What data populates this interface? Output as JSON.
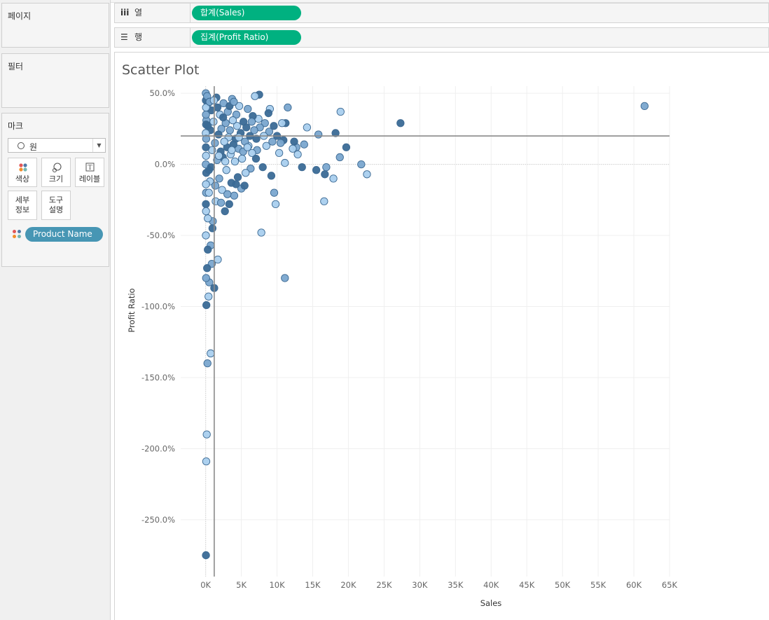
{
  "panels": {
    "pages": "페이지",
    "filters": "필터",
    "marks": "마크"
  },
  "marks": {
    "mark_type": "원",
    "buttons": {
      "color": "색상",
      "size": "크기",
      "label": "레이블",
      "detail": "세부\n정보",
      "tooltip": "도구\n설명"
    },
    "detail_pill": "Product Name",
    "dot_colors": [
      "#e15759",
      "#4e79a7",
      "#f28e2b",
      "#76b7b2"
    ]
  },
  "shelves": {
    "columns": {
      "label": "열",
      "pill": "합계(Sales)"
    },
    "rows": {
      "label": "행",
      "pill": "집계(Profit Ratio)"
    }
  },
  "colors": {
    "pill_green": "#00b180",
    "pill_blue": "#4796b4",
    "point_fill": "#7aa6cf",
    "point_dark": "#3a6a96",
    "point_light": "#a9cfee"
  },
  "sheet_title": "Scatter Plot",
  "chart_data": {
    "type": "scatter",
    "title": "Scatter Plot",
    "xlabel": "Sales",
    "ylabel": "Profit Ratio",
    "xlim": [
      -3500,
      65000
    ],
    "ylim": [
      -290,
      55
    ],
    "x_ticks": [
      0,
      5000,
      10000,
      15000,
      20000,
      25000,
      30000,
      35000,
      40000,
      45000,
      50000,
      55000,
      60000,
      65000
    ],
    "x_tick_labels": [
      "0K",
      "5K",
      "10K",
      "15K",
      "20K",
      "25K",
      "30K",
      "35K",
      "40K",
      "45K",
      "50K",
      "55K",
      "60K",
      "65K"
    ],
    "y_ticks": [
      50,
      0,
      -50,
      -100,
      -150,
      -200,
      -250
    ],
    "y_tick_labels": [
      "50.0%",
      "0.0%",
      "-50.0%",
      "-100.0%",
      "-150.0%",
      "-200.0%",
      "-250.0%"
    ],
    "reference_lines": {
      "x": 1200,
      "y": 20
    },
    "grid": true,
    "points": [
      {
        "x": 61500,
        "y": 41
      },
      {
        "x": 27300,
        "y": 29
      },
      {
        "x": 22600,
        "y": -7
      },
      {
        "x": 21800,
        "y": 0
      },
      {
        "x": 19700,
        "y": 12
      },
      {
        "x": 18900,
        "y": 37
      },
      {
        "x": 18800,
        "y": 5
      },
      {
        "x": 18200,
        "y": 22
      },
      {
        "x": 17900,
        "y": -10
      },
      {
        "x": 16900,
        "y": -2
      },
      {
        "x": 16700,
        "y": -7
      },
      {
        "x": 16600,
        "y": -26
      },
      {
        "x": 15800,
        "y": 21
      },
      {
        "x": 15500,
        "y": -4
      },
      {
        "x": 14200,
        "y": 26
      },
      {
        "x": 13800,
        "y": 14
      },
      {
        "x": 13500,
        "y": -2
      },
      {
        "x": 12900,
        "y": 7
      },
      {
        "x": 12700,
        "y": 12
      },
      {
        "x": 12400,
        "y": 16
      },
      {
        "x": 12200,
        "y": 11
      },
      {
        "x": 11500,
        "y": 40
      },
      {
        "x": 11200,
        "y": 29
      },
      {
        "x": 11100,
        "y": 1
      },
      {
        "x": 11100,
        "y": -80
      },
      {
        "x": 10900,
        "y": 17
      },
      {
        "x": 10700,
        "y": 29
      },
      {
        "x": 10500,
        "y": 15
      },
      {
        "x": 10000,
        "y": 20
      },
      {
        "x": 9800,
        "y": -28
      },
      {
        "x": 9600,
        "y": -20
      },
      {
        "x": 9200,
        "y": -8
      },
      {
        "x": 9000,
        "y": 39
      },
      {
        "x": 8900,
        "y": 23
      },
      {
        "x": 8800,
        "y": 36
      },
      {
        "x": 8500,
        "y": 13
      },
      {
        "x": 8300,
        "y": 29
      },
      {
        "x": 8000,
        "y": -2
      },
      {
        "x": 7800,
        "y": -48
      },
      {
        "x": 7600,
        "y": 26
      },
      {
        "x": 7500,
        "y": 49
      },
      {
        "x": 7400,
        "y": 32
      },
      {
        "x": 7200,
        "y": 10
      },
      {
        "x": 7100,
        "y": 18
      },
      {
        "x": 6900,
        "y": 48
      },
      {
        "x": 6800,
        "y": 24
      },
      {
        "x": 6600,
        "y": 34
      },
      {
        "x": 6500,
        "y": 8
      },
      {
        "x": 6300,
        "y": -3
      },
      {
        "x": 6200,
        "y": 20
      },
      {
        "x": 6000,
        "y": 13
      },
      {
        "x": 5900,
        "y": 39
      },
      {
        "x": 5700,
        "y": 26
      },
      {
        "x": 5600,
        "y": -6
      },
      {
        "x": 5500,
        "y": 16
      },
      {
        "x": 5300,
        "y": 30
      },
      {
        "x": 5100,
        "y": 4
      },
      {
        "x": 5000,
        "y": -17
      },
      {
        "x": 4900,
        "y": 22
      },
      {
        "x": 4700,
        "y": 41
      },
      {
        "x": 4600,
        "y": 11
      },
      {
        "x": 4500,
        "y": -9
      },
      {
        "x": 4400,
        "y": 27
      },
      {
        "x": 4300,
        "y": 35
      },
      {
        "x": 4200,
        "y": 18
      },
      {
        "x": 4100,
        "y": 2
      },
      {
        "x": 4000,
        "y": -22
      },
      {
        "x": 3900,
        "y": 14
      },
      {
        "x": 3800,
        "y": 31
      },
      {
        "x": 3700,
        "y": 46
      },
      {
        "x": 3600,
        "y": -13
      },
      {
        "x": 3500,
        "y": 7
      },
      {
        "x": 3400,
        "y": 24
      },
      {
        "x": 3300,
        "y": -28
      },
      {
        "x": 3200,
        "y": 19
      },
      {
        "x": 3100,
        "y": 37
      },
      {
        "x": 3000,
        "y": 12
      },
      {
        "x": 2900,
        "y": -4
      },
      {
        "x": 2800,
        "y": 29
      },
      {
        "x": 2700,
        "y": -33
      },
      {
        "x": 2600,
        "y": 16
      },
      {
        "x": 2500,
        "y": 43
      },
      {
        "x": 2400,
        "y": 5
      },
      {
        "x": 2300,
        "y": -18
      },
      {
        "x": 2200,
        "y": 25
      },
      {
        "x": 2100,
        "y": 9
      },
      {
        "x": 2000,
        "y": 35
      },
      {
        "x": 1900,
        "y": -10
      },
      {
        "x": 1800,
        "y": 21
      },
      {
        "x": 1700,
        "y": -67
      },
      {
        "x": 1600,
        "y": 3
      },
      {
        "x": 1500,
        "y": 47
      },
      {
        "x": 1400,
        "y": -26
      },
      {
        "x": 1300,
        "y": 15
      },
      {
        "x": 1200,
        "y": -87
      },
      {
        "x": 1100,
        "y": 30
      },
      {
        "x": 1000,
        "y": -40
      },
      {
        "x": 950,
        "y": -45
      },
      {
        "x": 900,
        "y": 10
      },
      {
        "x": 850,
        "y": -70
      },
      {
        "x": 800,
        "y": 38
      },
      {
        "x": 700,
        "y": -133
      },
      {
        "x": 700,
        "y": -57
      },
      {
        "x": 650,
        "y": 24
      },
      {
        "x": 600,
        "y": -12
      },
      {
        "x": 500,
        "y": -83
      },
      {
        "x": 450,
        "y": -4
      },
      {
        "x": 400,
        "y": -93
      },
      {
        "x": 350,
        "y": 43
      },
      {
        "x": 300,
        "y": -60
      },
      {
        "x": 300,
        "y": -38
      },
      {
        "x": 250,
        "y": -140
      },
      {
        "x": 200,
        "y": -73
      },
      {
        "x": 150,
        "y": -190
      },
      {
        "x": 100,
        "y": 31
      },
      {
        "x": 100,
        "y": -99
      },
      {
        "x": 80,
        "y": -209
      },
      {
        "x": 60,
        "y": -80
      },
      {
        "x": 40,
        "y": -275
      },
      {
        "x": 30,
        "y": -50
      },
      {
        "x": 20,
        "y": 50
      },
      {
        "x": 30,
        "y": 45
      },
      {
        "x": 50,
        "y": 40
      },
      {
        "x": 40,
        "y": 35
      },
      {
        "x": 60,
        "y": 28
      },
      {
        "x": 20,
        "y": 22
      },
      {
        "x": 70,
        "y": 18
      },
      {
        "x": 30,
        "y": 12
      },
      {
        "x": 50,
        "y": 6
      },
      {
        "x": 20,
        "y": 0
      },
      {
        "x": 80,
        "y": -6
      },
      {
        "x": 40,
        "y": -14
      },
      {
        "x": 60,
        "y": -20
      },
      {
        "x": 30,
        "y": -28
      },
      {
        "x": 50,
        "y": -33
      },
      {
        "x": 200,
        "y": 48
      },
      {
        "x": 300,
        "y": 27
      },
      {
        "x": 450,
        "y": -20
      },
      {
        "x": 550,
        "y": 44
      },
      {
        "x": 750,
        "y": -2
      },
      {
        "x": 1150,
        "y": 45
      },
      {
        "x": 1350,
        "y": -15
      },
      {
        "x": 1650,
        "y": 40
      },
      {
        "x": 1850,
        "y": 6
      },
      {
        "x": 2150,
        "y": -27
      },
      {
        "x": 2450,
        "y": 33
      },
      {
        "x": 2750,
        "y": 2
      },
      {
        "x": 3050,
        "y": -21
      },
      {
        "x": 3350,
        "y": 41
      },
      {
        "x": 3650,
        "y": 10
      },
      {
        "x": 3950,
        "y": 44
      },
      {
        "x": 4250,
        "y": -14
      },
      {
        "x": 4650,
        "y": 19
      },
      {
        "x": 5250,
        "y": 9
      },
      {
        "x": 5450,
        "y": -15
      },
      {
        "x": 5850,
        "y": 12
      },
      {
        "x": 6450,
        "y": 30
      },
      {
        "x": 7050,
        "y": 4
      },
      {
        "x": 8150,
        "y": 20
      },
      {
        "x": 9350,
        "y": 16
      },
      {
        "x": 9550,
        "y": 27
      },
      {
        "x": 10300,
        "y": 8
      }
    ]
  }
}
